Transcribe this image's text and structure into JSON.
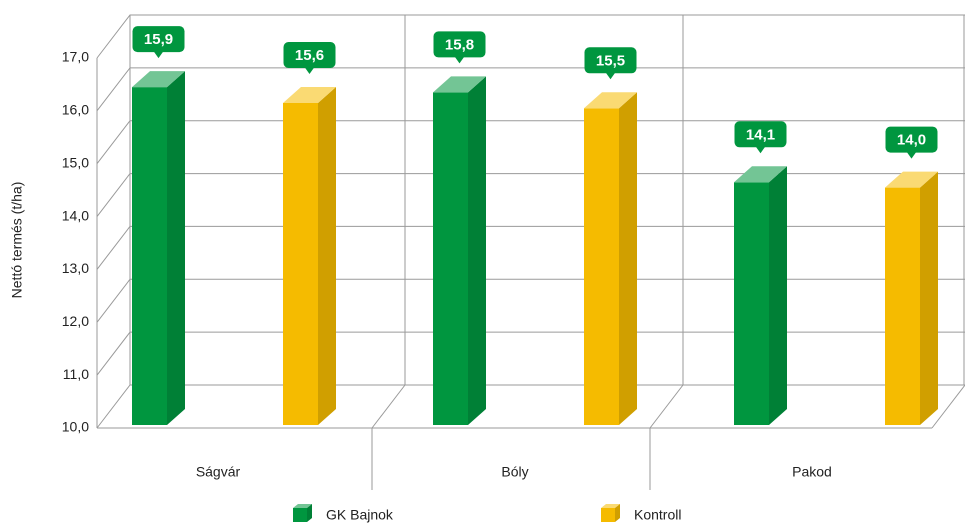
{
  "chart_data": {
    "type": "bar",
    "ylabel": "Nettó termés  (t/ha)",
    "categories": [
      "Ságvár",
      "Bóly",
      "Pakod"
    ],
    "series": [
      {
        "name": "GK Bajnok",
        "color": "#00963f",
        "values": [
          15.9,
          15.8,
          14.1
        ],
        "value_labels": [
          "15,9",
          "15,8",
          "14,1"
        ]
      },
      {
        "name": "Kontroll",
        "color": "#f5bb00",
        "values": [
          15.6,
          15.5,
          14.0
        ],
        "value_labels": [
          "15,6",
          "15,5",
          "14,0"
        ]
      }
    ],
    "ylim": [
      10,
      17
    ],
    "yticks": [
      {
        "value": 10,
        "label": "10,0"
      },
      {
        "value": 11,
        "label": "11,0"
      },
      {
        "value": 12,
        "label": "12,0"
      },
      {
        "value": 13,
        "label": "13,0"
      },
      {
        "value": 14,
        "label": "14,0"
      },
      {
        "value": 15,
        "label": "15,0"
      },
      {
        "value": 16,
        "label": "16,0"
      },
      {
        "value": 17,
        "label": "17,0"
      }
    ],
    "grid": true
  }
}
